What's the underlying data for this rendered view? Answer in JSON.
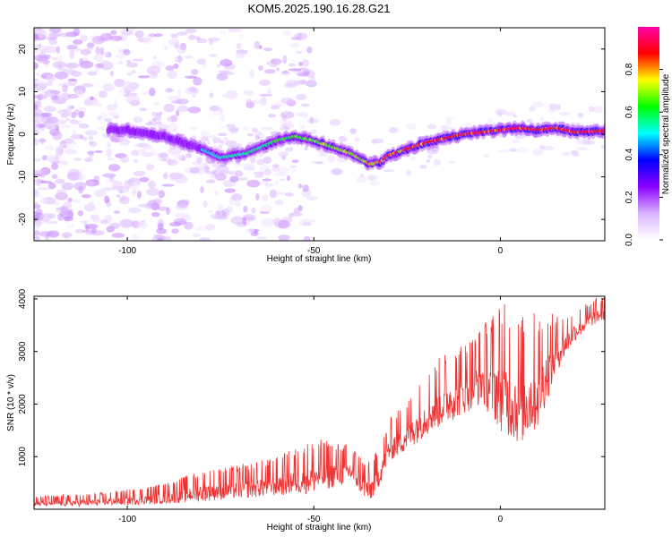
{
  "title": "KOM5.2025.190.16.28.G21",
  "chart_data": [
    {
      "type": "heatmap",
      "xlabel": "Height of straight line (km)",
      "ylabel": "Frequency (Hz)",
      "xlim": [
        -125,
        28
      ],
      "ylim": [
        -25,
        25
      ],
      "x_ticks": [
        -100,
        -50,
        0
      ],
      "y_ticks": [
        -20,
        -10,
        0,
        10,
        20
      ],
      "colorbar": {
        "label": "Normalized spectral amplitude",
        "range": [
          0,
          1
        ],
        "ticks": [
          0.0,
          0.2,
          0.4,
          0.6,
          0.8
        ],
        "colors": [
          "#ffffff",
          "#d9b3ff",
          "#8b00ff",
          "#0000ff",
          "#00ffff",
          "#00ff00",
          "#ffff00",
          "#ff0000",
          "#ff00aa"
        ]
      },
      "ridge": [
        {
          "x": -100,
          "y": 1.0
        },
        {
          "x": -90,
          "y": -0.5
        },
        {
          "x": -80,
          "y": -3.5
        },
        {
          "x": -75,
          "y": -5.5
        },
        {
          "x": -68,
          "y": -4.5
        },
        {
          "x": -60,
          "y": -1.5
        },
        {
          "x": -55,
          "y": -0.5
        },
        {
          "x": -50,
          "y": -1.5
        },
        {
          "x": -45,
          "y": -3.0
        },
        {
          "x": -40,
          "y": -4.5
        },
        {
          "x": -35,
          "y": -7.0
        },
        {
          "x": -32,
          "y": -6.5
        },
        {
          "x": -30,
          "y": -5.0
        },
        {
          "x": -25,
          "y": -3.5
        },
        {
          "x": -20,
          "y": -2.0
        },
        {
          "x": -15,
          "y": -1.0
        },
        {
          "x": -10,
          "y": 0.0
        },
        {
          "x": -5,
          "y": 0.5
        },
        {
          "x": 0,
          "y": 1.0
        },
        {
          "x": 5,
          "y": 1.5
        },
        {
          "x": 10,
          "y": 1.0
        },
        {
          "x": 15,
          "y": 1.5
        },
        {
          "x": 20,
          "y": 0.5
        },
        {
          "x": 28,
          "y": 0.8
        }
      ]
    },
    {
      "type": "line",
      "xlabel": "Height of straight line (km)",
      "ylabel": "SNR (10 * v/v)",
      "xlim": [
        -125,
        28
      ],
      "ylim": [
        0,
        4050
      ],
      "x_ticks": [
        -100,
        -50,
        0
      ],
      "y_ticks": [
        1000,
        2000,
        3000,
        4000
      ],
      "color": "#ee3333",
      "envelope": [
        {
          "x": -125,
          "low": 50,
          "high": 250
        },
        {
          "x": -110,
          "low": 60,
          "high": 300
        },
        {
          "x": -100,
          "low": 80,
          "high": 380
        },
        {
          "x": -90,
          "low": 100,
          "high": 500
        },
        {
          "x": -80,
          "low": 150,
          "high": 750
        },
        {
          "x": -70,
          "low": 200,
          "high": 850
        },
        {
          "x": -60,
          "low": 250,
          "high": 1000
        },
        {
          "x": -50,
          "low": 300,
          "high": 1350
        },
        {
          "x": -40,
          "low": 500,
          "high": 1250
        },
        {
          "x": -35,
          "low": 100,
          "high": 900
        },
        {
          "x": -32,
          "low": 500,
          "high": 1250
        },
        {
          "x": -30,
          "low": 900,
          "high": 1700
        },
        {
          "x": -25,
          "low": 1100,
          "high": 2100
        },
        {
          "x": -20,
          "low": 1400,
          "high": 2600
        },
        {
          "x": -15,
          "low": 1600,
          "high": 3000
        },
        {
          "x": -10,
          "low": 1800,
          "high": 3200
        },
        {
          "x": -5,
          "low": 2000,
          "high": 3500
        },
        {
          "x": 0,
          "low": 1500,
          "high": 4000
        },
        {
          "x": 5,
          "low": 1200,
          "high": 3700
        },
        {
          "x": 10,
          "low": 1500,
          "high": 3800
        },
        {
          "x": 15,
          "low": 2600,
          "high": 3700
        },
        {
          "x": 20,
          "low": 3200,
          "high": 3800
        },
        {
          "x": 25,
          "low": 3500,
          "high": 4000
        },
        {
          "x": 28,
          "low": 3600,
          "high": 4050
        }
      ]
    }
  ]
}
